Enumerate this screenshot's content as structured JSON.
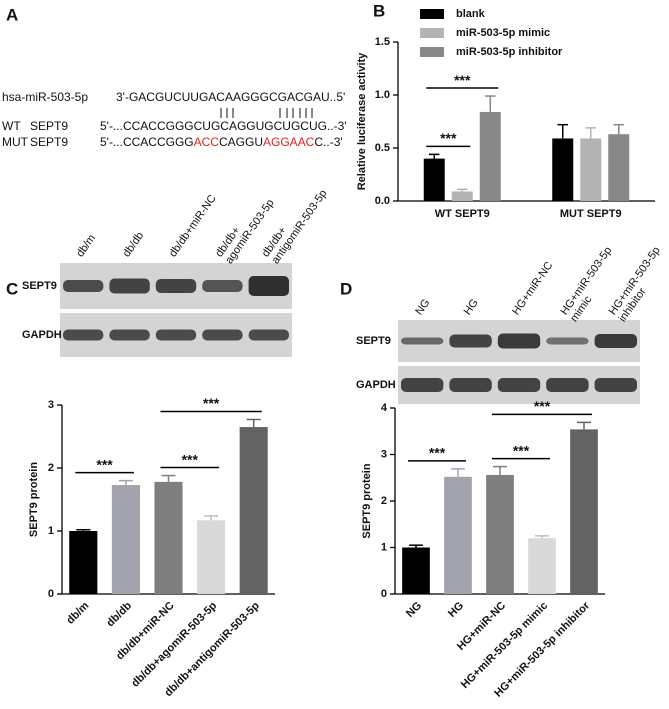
{
  "sequence_panel": {
    "panel": "A",
    "mirna_name": "hsa-miR-503-5p",
    "mirna_seq": "3'-GACGUCUUGACAAGGGCGACGAU..5'",
    "wt_label": "WT",
    "wt_gene": "SEPT9",
    "wt_seq": "5'-...CCACCGGGCUGCAGGUGCUGCUG..-3'",
    "mut_label": "MUT",
    "mut_gene": "SEPT9",
    "mut_seq": [
      {
        "text": "5'-...CCACCGGG",
        "color": "#111111"
      },
      {
        "text": "ACC",
        "color": "#e8211d"
      },
      {
        "text": "CAGGU",
        "color": "#111111"
      },
      {
        "text": "AGGAAC",
        "color": "#e8211d"
      },
      {
        "text": "C..-3'",
        "color": "#111111"
      }
    ]
  },
  "blots": [
    {
      "rows": [
        "SEPT9",
        "GAPDH"
      ],
      "lanes": [
        [
          "db/m"
        ],
        [
          "db/db"
        ],
        [
          "db/db+miR-NC"
        ],
        [
          "db/db+",
          "agomiR-503-5p"
        ],
        [
          "db/db+",
          "antigomiR-503-5p"
        ]
      ]
    },
    {
      "rows": [
        "SEPT9",
        "GAPDH"
      ],
      "lanes": [
        [
          "NG"
        ],
        [
          "HG"
        ],
        [
          "HG+miR-NC"
        ],
        [
          "HG+miR-503-5p",
          "mimic"
        ],
        [
          "HG+miR-503-5p",
          "inhibitor"
        ]
      ]
    }
  ],
  "chart_data": [
    {
      "type": "bar",
      "panel": "B",
      "ylabel": "Relative luciferase activity",
      "categories": [
        "WT SEPT9",
        "MUT SEPT9"
      ],
      "series": [
        {
          "name": "blank",
          "color": "#000000",
          "values": [
            0.4,
            0.59
          ],
          "errors": [
            0.04,
            0.13
          ]
        },
        {
          "name": "miR-503-5p mimic",
          "color": "#b3b3b3",
          "values": [
            0.09,
            0.59
          ],
          "errors": [
            0.02,
            0.1
          ]
        },
        {
          "name": "miR-503-5p inhibitor",
          "color": "#878787",
          "values": [
            0.84,
            0.63
          ],
          "errors": [
            0.15,
            0.09
          ]
        }
      ],
      "ylim": [
        0,
        1.5
      ],
      "yticks": [
        {
          "value": 0,
          "label": "0.0"
        },
        0.5,
        {
          "value": 1,
          "label": "1.0"
        },
        1.5
      ],
      "significance": [
        {
          "category": 0,
          "from": 0,
          "to": 1,
          "label": "***"
        },
        {
          "category": 0,
          "from": 0,
          "to": 2,
          "label": "***"
        }
      ]
    },
    {
      "type": "bar",
      "panel": "C",
      "ylabel": "SEPT9 protein",
      "categories": [
        "db/m",
        "db/db",
        "db/db+miR-NC",
        "db/db+agomiR-503-5p",
        "db/db+antigomiR-503-5p"
      ],
      "values": [
        1.0,
        1.73,
        1.78,
        1.17,
        2.65
      ],
      "errors": [
        0.02,
        0.07,
        0.1,
        0.07,
        0.12
      ],
      "colors": [
        "#000000",
        "#a3a3ad",
        "#7f7f7f",
        "#d9d9d9",
        "#636363"
      ],
      "ylim": [
        0,
        3
      ],
      "yticks": [
        0,
        1,
        2,
        3
      ],
      "significance": [
        {
          "from": 0,
          "to": 1,
          "label": "***"
        },
        {
          "from": 2,
          "to": 3,
          "label": "***"
        },
        {
          "from": 2,
          "to": 4,
          "label": "***"
        }
      ]
    },
    {
      "type": "bar",
      "panel": "D",
      "ylabel": "SEPT9 protein",
      "categories": [
        "NG",
        "HG",
        "HG+miR-NC",
        "HG+miR-503-5p mimic",
        "HG+miR-503-5p inhibitor"
      ],
      "values": [
        1.0,
        2.52,
        2.56,
        1.2,
        3.54
      ],
      "errors": [
        0.05,
        0.17,
        0.18,
        0.05,
        0.15
      ],
      "colors": [
        "#000000",
        "#a3a3ad",
        "#7f7f7f",
        "#d9d9d9",
        "#636363"
      ],
      "ylim": [
        0,
        4
      ],
      "yticks": [
        0,
        1,
        2,
        3,
        4
      ],
      "significance": [
        {
          "from": 0,
          "to": 1,
          "label": "***"
        },
        {
          "from": 2,
          "to": 3,
          "label": "***"
        },
        {
          "from": 2,
          "to": 4,
          "label": "***"
        }
      ]
    }
  ]
}
